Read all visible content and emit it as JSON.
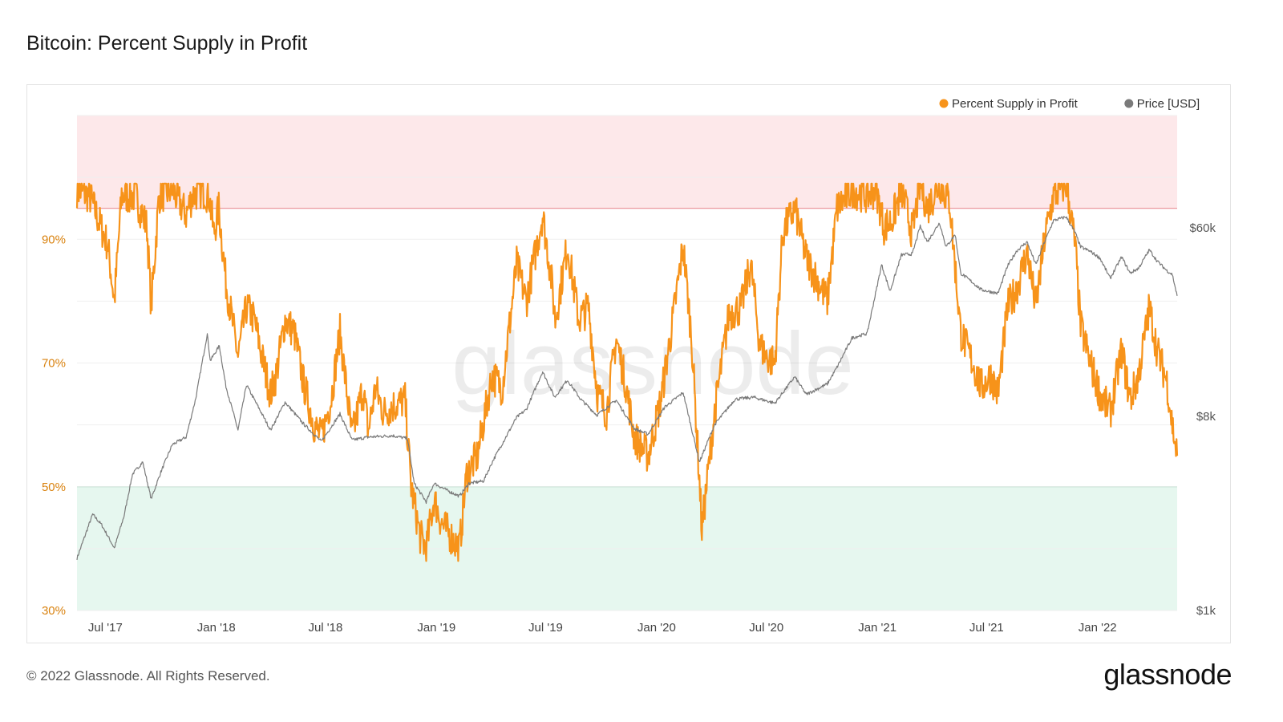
{
  "header": {
    "title": "Bitcoin: Percent Supply in Profit"
  },
  "footer": {
    "copyright": "© 2022 Glassnode. All Rights Reserved.",
    "brand": "glassnode"
  },
  "watermark": "glassnode",
  "colors": {
    "supply_series": "#f7931a",
    "price_series": "#7a7a7a",
    "upper_band_fill": "#fde8ea",
    "upper_band_line": "#e88e96",
    "lower_band_fill": "#e6f7ef",
    "lower_band_line": "#8fd4b1",
    "left_axis_text": "#d9820f",
    "right_axis_text": "#555555",
    "grid": "#efefef"
  },
  "chart_data": {
    "type": "line",
    "title": "Bitcoin: Percent Supply in Profit",
    "x_range": [
      "2017-05-15",
      "2022-05-13"
    ],
    "x_ticks": [
      {
        "date": "2017-07-01",
        "label": "Jul '17"
      },
      {
        "date": "2018-01-01",
        "label": "Jan '18"
      },
      {
        "date": "2018-07-01",
        "label": "Jul '18"
      },
      {
        "date": "2019-01-01",
        "label": "Jan '19"
      },
      {
        "date": "2019-07-01",
        "label": "Jul '19"
      },
      {
        "date": "2020-01-01",
        "label": "Jan '20"
      },
      {
        "date": "2020-07-01",
        "label": "Jul '20"
      },
      {
        "date": "2021-01-01",
        "label": "Jan '21"
      },
      {
        "date": "2021-07-01",
        "label": "Jul '21"
      },
      {
        "date": "2022-01-01",
        "label": "Jan '22"
      }
    ],
    "y_left": {
      "scale": "linear",
      "range": [
        30,
        110
      ],
      "unit": "%",
      "ticks": [
        {
          "value": 30,
          "label": "30%"
        },
        {
          "value": 50,
          "label": "50%"
        },
        {
          "value": 70,
          "label": "70%"
        },
        {
          "value": 90,
          "label": "90%"
        }
      ]
    },
    "y_right": {
      "scale": "log",
      "range": [
        1000,
        200000
      ],
      "unit": "USD",
      "ticks": [
        {
          "value": 1000,
          "label": "$1k"
        },
        {
          "value": 8000,
          "label": "$8k"
        },
        {
          "value": 60000,
          "label": "$60k"
        }
      ]
    },
    "bands": [
      {
        "name": "upper",
        "from": 95,
        "to": 110
      },
      {
        "name": "lower",
        "from": 30,
        "to": 50
      }
    ],
    "legend": {
      "position": "top-right",
      "entries": [
        {
          "label": "Percent Supply in Profit",
          "series": "supply"
        },
        {
          "label": "Price [USD]",
          "series": "price"
        }
      ]
    },
    "grid": true,
    "series": [
      {
        "id": "supply",
        "name": "Percent Supply in Profit",
        "axis": "left",
        "points": [
          [
            "2017-05-15",
            98
          ],
          [
            "2017-06-05",
            97
          ],
          [
            "2017-06-20",
            93
          ],
          [
            "2017-07-05",
            89
          ],
          [
            "2017-07-16",
            80
          ],
          [
            "2017-07-28",
            97
          ],
          [
            "2017-08-20",
            97
          ],
          [
            "2017-09-08",
            92
          ],
          [
            "2017-09-15",
            79
          ],
          [
            "2017-09-28",
            97
          ],
          [
            "2017-10-20",
            98
          ],
          [
            "2017-11-12",
            94
          ],
          [
            "2017-11-22",
            97
          ],
          [
            "2017-12-08",
            98
          ],
          [
            "2017-12-20",
            97
          ],
          [
            "2017-12-28",
            91
          ],
          [
            "2018-01-05",
            95
          ],
          [
            "2018-01-17",
            83
          ],
          [
            "2018-02-06",
            71
          ],
          [
            "2018-02-20",
            79
          ],
          [
            "2018-03-05",
            77
          ],
          [
            "2018-03-20",
            70
          ],
          [
            "2018-04-01",
            65
          ],
          [
            "2018-04-10",
            68
          ],
          [
            "2018-04-25",
            77
          ],
          [
            "2018-05-10",
            75
          ],
          [
            "2018-05-25",
            67
          ],
          [
            "2018-06-12",
            60
          ],
          [
            "2018-06-24",
            58
          ],
          [
            "2018-07-10",
            64
          ],
          [
            "2018-07-25",
            75
          ],
          [
            "2018-08-14",
            58
          ],
          [
            "2018-09-01",
            66
          ],
          [
            "2018-09-10",
            59
          ],
          [
            "2018-09-22",
            66
          ],
          [
            "2018-10-05",
            62
          ],
          [
            "2018-10-20",
            63
          ],
          [
            "2018-11-10",
            64
          ],
          [
            "2018-11-20",
            50
          ],
          [
            "2018-12-05",
            42
          ],
          [
            "2018-12-15",
            40
          ],
          [
            "2018-12-28",
            48
          ],
          [
            "2019-01-10",
            44
          ],
          [
            "2019-01-25",
            42
          ],
          [
            "2019-02-08",
            40
          ],
          [
            "2019-02-20",
            52
          ],
          [
            "2019-03-10",
            55
          ],
          [
            "2019-04-03",
            68
          ],
          [
            "2019-04-20",
            66
          ],
          [
            "2019-05-14",
            86
          ],
          [
            "2019-05-30",
            80
          ],
          [
            "2019-06-26",
            94
          ],
          [
            "2019-07-10",
            84
          ],
          [
            "2019-07-17",
            77
          ],
          [
            "2019-08-06",
            89
          ],
          [
            "2019-08-25",
            77
          ],
          [
            "2019-09-10",
            79
          ],
          [
            "2019-09-25",
            65
          ],
          [
            "2019-10-10",
            62
          ],
          [
            "2019-10-26",
            74
          ],
          [
            "2019-11-10",
            67
          ],
          [
            "2019-11-25",
            58
          ],
          [
            "2019-12-18",
            55
          ],
          [
            "2020-01-08",
            64
          ],
          [
            "2020-01-25",
            75
          ],
          [
            "2020-02-14",
            89
          ],
          [
            "2020-02-28",
            74
          ],
          [
            "2020-03-12",
            51
          ],
          [
            "2020-03-16",
            43
          ],
          [
            "2020-04-06",
            62
          ],
          [
            "2020-04-30",
            78
          ],
          [
            "2020-05-20",
            79
          ],
          [
            "2020-06-05",
            86
          ],
          [
            "2020-06-20",
            73
          ],
          [
            "2020-07-01",
            71
          ],
          [
            "2020-07-15",
            70
          ],
          [
            "2020-07-28",
            91
          ],
          [
            "2020-08-17",
            95
          ],
          [
            "2020-09-05",
            87
          ],
          [
            "2020-09-20",
            84
          ],
          [
            "2020-10-10",
            80
          ],
          [
            "2020-10-26",
            95
          ],
          [
            "2020-11-20",
            98
          ],
          [
            "2020-12-15",
            97
          ],
          [
            "2020-12-30",
            98
          ],
          [
            "2021-01-12",
            92
          ],
          [
            "2021-01-25",
            93
          ],
          [
            "2021-02-10",
            98
          ],
          [
            "2021-02-28",
            91
          ],
          [
            "2021-03-13",
            99
          ],
          [
            "2021-03-25",
            95
          ],
          [
            "2021-04-14",
            99
          ],
          [
            "2021-05-01",
            96
          ],
          [
            "2021-05-19",
            75
          ],
          [
            "2021-06-08",
            70
          ],
          [
            "2021-06-22",
            66
          ],
          [
            "2021-07-08",
            68
          ],
          [
            "2021-07-20",
            65
          ],
          [
            "2021-08-05",
            79
          ],
          [
            "2021-08-20",
            82
          ],
          [
            "2021-09-06",
            88
          ],
          [
            "2021-09-21",
            79
          ],
          [
            "2021-10-05",
            90
          ],
          [
            "2021-10-20",
            97
          ],
          [
            "2021-11-10",
            99
          ],
          [
            "2021-11-25",
            89
          ],
          [
            "2021-12-04",
            76
          ],
          [
            "2021-12-20",
            70
          ],
          [
            "2022-01-05",
            65
          ],
          [
            "2022-01-22",
            62
          ],
          [
            "2022-02-10",
            72
          ],
          [
            "2022-02-24",
            64
          ],
          [
            "2022-03-10",
            68
          ],
          [
            "2022-03-28",
            79
          ],
          [
            "2022-04-10",
            72
          ],
          [
            "2022-04-26",
            67
          ],
          [
            "2022-05-05",
            60
          ],
          [
            "2022-05-13",
            55
          ]
        ]
      },
      {
        "id": "price",
        "name": "Price [USD]",
        "axis": "right",
        "points": [
          [
            "2017-05-15",
            1750
          ],
          [
            "2017-06-10",
            2800
          ],
          [
            "2017-06-25",
            2500
          ],
          [
            "2017-07-16",
            1950
          ],
          [
            "2017-08-01",
            2750
          ],
          [
            "2017-08-15",
            4300
          ],
          [
            "2017-09-01",
            4900
          ],
          [
            "2017-09-15",
            3300
          ],
          [
            "2017-10-01",
            4400
          ],
          [
            "2017-10-20",
            5900
          ],
          [
            "2017-11-12",
            6400
          ],
          [
            "2017-11-28",
            9700
          ],
          [
            "2017-12-17",
            19300
          ],
          [
            "2017-12-22",
            14500
          ],
          [
            "2018-01-06",
            17000
          ],
          [
            "2018-01-17",
            11000
          ],
          [
            "2018-02-06",
            6900
          ],
          [
            "2018-02-20",
            11200
          ],
          [
            "2018-03-10",
            9000
          ],
          [
            "2018-04-01",
            6900
          ],
          [
            "2018-04-25",
            9300
          ],
          [
            "2018-05-25",
            7400
          ],
          [
            "2018-06-24",
            6100
          ],
          [
            "2018-07-25",
            8200
          ],
          [
            "2018-08-14",
            6200
          ],
          [
            "2018-09-10",
            6400
          ],
          [
            "2018-10-20",
            6500
          ],
          [
            "2018-11-14",
            6300
          ],
          [
            "2018-11-25",
            3900
          ],
          [
            "2018-12-15",
            3200
          ],
          [
            "2018-12-28",
            3900
          ],
          [
            "2019-01-20",
            3600
          ],
          [
            "2019-02-08",
            3400
          ],
          [
            "2019-02-24",
            3900
          ],
          [
            "2019-03-20",
            4000
          ],
          [
            "2019-04-05",
            5000
          ],
          [
            "2019-05-14",
            7900
          ],
          [
            "2019-05-30",
            8600
          ],
          [
            "2019-06-26",
            12900
          ],
          [
            "2019-07-16",
            9800
          ],
          [
            "2019-08-06",
            11800
          ],
          [
            "2019-08-28",
            9600
          ],
          [
            "2019-09-24",
            8100
          ],
          [
            "2019-10-26",
            9500
          ],
          [
            "2019-11-25",
            7000
          ],
          [
            "2019-12-18",
            6600
          ],
          [
            "2020-01-14",
            8800
          ],
          [
            "2020-02-14",
            10300
          ],
          [
            "2020-03-12",
            4900
          ],
          [
            "2020-04-06",
            7300
          ],
          [
            "2020-05-10",
            9600
          ],
          [
            "2020-06-10",
            9800
          ],
          [
            "2020-07-15",
            9200
          ],
          [
            "2020-08-17",
            12200
          ],
          [
            "2020-09-05",
            10100
          ],
          [
            "2020-10-10",
            11300
          ],
          [
            "2020-10-26",
            13500
          ],
          [
            "2020-11-20",
            18500
          ],
          [
            "2020-12-15",
            19400
          ],
          [
            "2021-01-08",
            40500
          ],
          [
            "2021-01-22",
            30500
          ],
          [
            "2021-02-10",
            45000
          ],
          [
            "2021-02-28",
            45500
          ],
          [
            "2021-03-13",
            61000
          ],
          [
            "2021-03-25",
            51700
          ],
          [
            "2021-04-14",
            63500
          ],
          [
            "2021-04-25",
            49000
          ],
          [
            "2021-05-10",
            56000
          ],
          [
            "2021-05-19",
            37000
          ],
          [
            "2021-06-08",
            33500
          ],
          [
            "2021-06-22",
            31000
          ],
          [
            "2021-07-20",
            29800
          ],
          [
            "2021-08-05",
            40000
          ],
          [
            "2021-08-20",
            47000
          ],
          [
            "2021-09-06",
            51700
          ],
          [
            "2021-09-21",
            40500
          ],
          [
            "2021-10-05",
            51500
          ],
          [
            "2021-10-20",
            65000
          ],
          [
            "2021-11-10",
            67600
          ],
          [
            "2021-11-25",
            57000
          ],
          [
            "2021-12-04",
            49000
          ],
          [
            "2021-12-20",
            46700
          ],
          [
            "2022-01-05",
            43500
          ],
          [
            "2022-01-22",
            35000
          ],
          [
            "2022-02-10",
            44000
          ],
          [
            "2022-02-24",
            37000
          ],
          [
            "2022-03-10",
            39000
          ],
          [
            "2022-03-28",
            47500
          ],
          [
            "2022-04-10",
            42100
          ],
          [
            "2022-04-26",
            38000
          ],
          [
            "2022-05-05",
            36500
          ],
          [
            "2022-05-13",
            29000
          ]
        ]
      }
    ]
  }
}
